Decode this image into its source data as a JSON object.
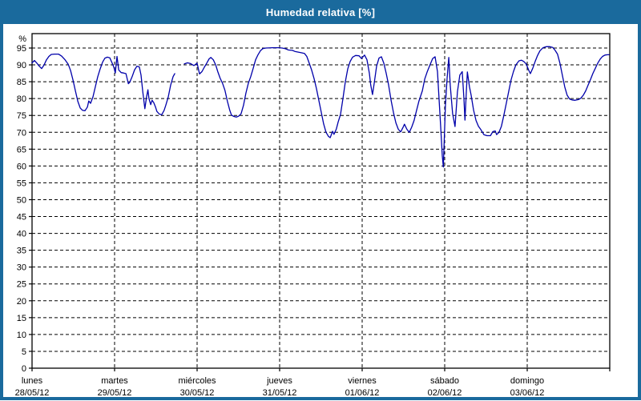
{
  "window": {
    "title": "Humedad relativa [%]"
  },
  "colors": {
    "frame": "#1a6a9d",
    "plot_background": "#ffffff",
    "line": "#0000aa",
    "grid": "#000000",
    "axis": "#000000",
    "text": "#000000",
    "title_text": "#ffffff"
  },
  "chart_data": {
    "type": "line",
    "title": "Humedad relativa [%]",
    "ylabel": "",
    "xlabel": "",
    "y_unit_label": "%",
    "ylim": [
      0,
      95
    ],
    "y_ticks": [
      0,
      5,
      10,
      15,
      20,
      25,
      30,
      35,
      40,
      45,
      50,
      55,
      60,
      65,
      70,
      75,
      80,
      85,
      90,
      95
    ],
    "grid": "dashed",
    "legend_position": "none",
    "hours_per_day": 24,
    "x_days": [
      {
        "name": "lunes",
        "date": "28/05/12"
      },
      {
        "name": "martes",
        "date": "29/05/12"
      },
      {
        "name": "miércoles",
        "date": "30/05/12"
      },
      {
        "name": "jueves",
        "date": "31/05/12"
      },
      {
        "name": "viernes",
        "date": "01/06/12"
      },
      {
        "name": "sábado",
        "date": "02/06/12"
      },
      {
        "name": "domingo",
        "date": "03/06/12"
      }
    ],
    "series": [
      {
        "name": "Humedad relativa",
        "points": [
          [
            0,
            90.6
          ],
          [
            0.7,
            91.3
          ],
          [
            1.4,
            90.5
          ],
          [
            2.1,
            89.6
          ],
          [
            2.8,
            88.9
          ],
          [
            3.5,
            90
          ],
          [
            4.2,
            91.5
          ],
          [
            4.9,
            92.5
          ],
          [
            5.6,
            93.1
          ],
          [
            6.5,
            93.2
          ],
          [
            7.7,
            93.2
          ],
          [
            8.6,
            92.6
          ],
          [
            9.6,
            91.5
          ],
          [
            10.5,
            90.2
          ],
          [
            11.2,
            88.3
          ],
          [
            11.9,
            85.5
          ],
          [
            12.6,
            82.3
          ],
          [
            13.3,
            79.2
          ],
          [
            14,
            77.2
          ],
          [
            14.7,
            76.5
          ],
          [
            15.4,
            76.4
          ],
          [
            16.1,
            77.5
          ],
          [
            16.5,
            79.3
          ],
          [
            17,
            78.6
          ],
          [
            17.7,
            80.5
          ],
          [
            18.4,
            83.5
          ],
          [
            19.1,
            86.5
          ],
          [
            19.8,
            88.8
          ],
          [
            20.5,
            90.8
          ],
          [
            21.2,
            92
          ],
          [
            21.9,
            92.3
          ],
          [
            22.6,
            92.1
          ],
          [
            23.3,
            90.5
          ],
          [
            23.8,
            89.3
          ],
          [
            24.2,
            87.6
          ],
          [
            24.7,
            92.5
          ],
          [
            25.2,
            88.5
          ],
          [
            25.9,
            87.7
          ],
          [
            26.6,
            87.6
          ],
          [
            27.3,
            87.4
          ],
          [
            28,
            84.4
          ],
          [
            28.4,
            84.8
          ],
          [
            29.1,
            86.5
          ],
          [
            29.8,
            88.5
          ],
          [
            30.5,
            89.6
          ],
          [
            31.2,
            89.4
          ],
          [
            31.7,
            87
          ],
          [
            32.2,
            82
          ],
          [
            32.8,
            77
          ],
          [
            33.3,
            80.5
          ],
          [
            33.7,
            82.6
          ],
          [
            34,
            80
          ],
          [
            34.5,
            78.2
          ],
          [
            34.9,
            79.5
          ],
          [
            35.4,
            78.8
          ],
          [
            35.9,
            77.5
          ],
          [
            36.3,
            76.2
          ],
          [
            37,
            75.4
          ],
          [
            37.7,
            75.2
          ],
          [
            38.4,
            76.5
          ],
          [
            38.9,
            78
          ],
          [
            39.6,
            80.5
          ],
          [
            40.3,
            84
          ],
          [
            41,
            86.5
          ],
          [
            41.5,
            87.4
          ],
          [
            42.9,
            null
          ],
          [
            44.3,
            90.3
          ],
          [
            45.2,
            90.6
          ],
          [
            46.1,
            90.4
          ],
          [
            47.1,
            89.8
          ],
          [
            48,
            90.5
          ],
          [
            48.7,
            87.3
          ],
          [
            49.4,
            88
          ],
          [
            50.1,
            89.3
          ],
          [
            50.8,
            90.5
          ],
          [
            51.5,
            91.8
          ],
          [
            52,
            92.2
          ],
          [
            52.7,
            91.5
          ],
          [
            53.4,
            90
          ],
          [
            54,
            88
          ],
          [
            54.7,
            86
          ],
          [
            55.4,
            84.5
          ],
          [
            56.1,
            82.4
          ],
          [
            56.8,
            79.2
          ],
          [
            57.5,
            76.5
          ],
          [
            58,
            75.1
          ],
          [
            58.7,
            74.7
          ],
          [
            59.4,
            74.5
          ],
          [
            60.1,
            74.8
          ],
          [
            60.8,
            75.5
          ],
          [
            61.5,
            78
          ],
          [
            62.2,
            81.6
          ],
          [
            62.9,
            84.5
          ],
          [
            63.6,
            86.5
          ],
          [
            64.3,
            89
          ],
          [
            65,
            91.5
          ],
          [
            65.7,
            93
          ],
          [
            66.4,
            94.2
          ],
          [
            67.1,
            94.8
          ],
          [
            68,
            95
          ],
          [
            69.9,
            95.1
          ],
          [
            71.8,
            95.1
          ],
          [
            72.7,
            95
          ],
          [
            73.6,
            94.8
          ],
          [
            74.6,
            94.4
          ],
          [
            75.7,
            94.3
          ],
          [
            76.4,
            94
          ],
          [
            77.4,
            93.8
          ],
          [
            78.3,
            93.6
          ],
          [
            79.2,
            93.4
          ],
          [
            79.9,
            92.5
          ],
          [
            80.6,
            90.5
          ],
          [
            81.3,
            88.5
          ],
          [
            82,
            86
          ],
          [
            82.7,
            83
          ],
          [
            83.4,
            79.5
          ],
          [
            84.1,
            76
          ],
          [
            84.8,
            72.5
          ],
          [
            85.5,
            70
          ],
          [
            86.2,
            68.8
          ],
          [
            86.7,
            68.4
          ],
          [
            87.4,
            70.3
          ],
          [
            87.8,
            69.4
          ],
          [
            88.5,
            71
          ],
          [
            89,
            73
          ],
          [
            89.7,
            75.3
          ],
          [
            90.4,
            80
          ],
          [
            91.1,
            85
          ],
          [
            91.8,
            88.8
          ],
          [
            92.5,
            91
          ],
          [
            93.2,
            92.3
          ],
          [
            94.1,
            92.8
          ],
          [
            95.1,
            92.7
          ],
          [
            95.8,
            91.9
          ],
          [
            96.7,
            92.9
          ],
          [
            97.4,
            91.5
          ],
          [
            98.1,
            87.5
          ],
          [
            98.5,
            84
          ],
          [
            99,
            81.2
          ],
          [
            99.5,
            84.5
          ],
          [
            100.2,
            89.6
          ],
          [
            100.9,
            92
          ],
          [
            101.6,
            92.4
          ],
          [
            102.3,
            90.5
          ],
          [
            103,
            87.5
          ],
          [
            103.7,
            84
          ],
          [
            104.4,
            79.5
          ],
          [
            105.1,
            75.8
          ],
          [
            105.8,
            72.8
          ],
          [
            106.5,
            70.9
          ],
          [
            107.2,
            70.1
          ],
          [
            107.9,
            71.5
          ],
          [
            108.3,
            72.4
          ],
          [
            109,
            70.9
          ],
          [
            109.7,
            70
          ],
          [
            110.4,
            71.5
          ],
          [
            111.1,
            73.5
          ],
          [
            111.8,
            76.4
          ],
          [
            112.5,
            79.2
          ],
          [
            113.5,
            82.3
          ],
          [
            114.2,
            85.8
          ],
          [
            114.9,
            87.9
          ],
          [
            115.8,
            90.2
          ],
          [
            116.5,
            91.9
          ],
          [
            117.2,
            92.4
          ],
          [
            117.9,
            88
          ],
          [
            118.3,
            81
          ],
          [
            118.8,
            72
          ],
          [
            119.3,
            63
          ],
          [
            119.6,
            59.7
          ],
          [
            120.2,
            78
          ],
          [
            120.7,
            86
          ],
          [
            121.2,
            92.2
          ],
          [
            121.6,
            84
          ],
          [
            122.3,
            75.5
          ],
          [
            123,
            71.7
          ],
          [
            123.7,
            82
          ],
          [
            124.4,
            87
          ],
          [
            125.1,
            88
          ],
          [
            125.6,
            80
          ],
          [
            125.9,
            73.6
          ],
          [
            126.3,
            82
          ],
          [
            126.6,
            87.9
          ],
          [
            127.2,
            83.5
          ],
          [
            127.7,
            81
          ],
          [
            128.4,
            76.5
          ],
          [
            129.1,
            73.5
          ],
          [
            129.8,
            71.8
          ],
          [
            130.5,
            70.8
          ],
          [
            131.4,
            69.3
          ],
          [
            132.3,
            69
          ],
          [
            133.3,
            69
          ],
          [
            134,
            70.2
          ],
          [
            134.7,
            70.4
          ],
          [
            135.1,
            69.3
          ],
          [
            135.8,
            70
          ],
          [
            136.5,
            71.8
          ],
          [
            137.2,
            75
          ],
          [
            137.9,
            78.5
          ],
          [
            138.6,
            82
          ],
          [
            139.3,
            85.5
          ],
          [
            140,
            88
          ],
          [
            140.7,
            90
          ],
          [
            141.6,
            91.2
          ],
          [
            142.3,
            91.4
          ],
          [
            143,
            91
          ],
          [
            143.7,
            90.3
          ],
          [
            144.4,
            88.5
          ],
          [
            144.9,
            87.4
          ],
          [
            145.6,
            89
          ],
          [
            146.3,
            91
          ],
          [
            147,
            92.8
          ],
          [
            147.7,
            94.2
          ],
          [
            148.6,
            95.1
          ],
          [
            149.6,
            95.4
          ],
          [
            150.5,
            95.4
          ],
          [
            151.4,
            95.2
          ],
          [
            152.1,
            94.3
          ],
          [
            152.8,
            93.2
          ],
          [
            153.5,
            90.5
          ],
          [
            154.2,
            87
          ],
          [
            154.9,
            83.5
          ],
          [
            155.6,
            81
          ],
          [
            156.3,
            79.9
          ],
          [
            157,
            79.6
          ],
          [
            157.9,
            79.5
          ],
          [
            158.9,
            79.7
          ],
          [
            159.6,
            80.1
          ],
          [
            160.3,
            81
          ],
          [
            161,
            82.3
          ],
          [
            161.7,
            84
          ],
          [
            162.4,
            85.7
          ],
          [
            163.1,
            87.5
          ],
          [
            163.8,
            89
          ],
          [
            164.5,
            90.5
          ],
          [
            165.2,
            91.7
          ],
          [
            165.9,
            92.5
          ],
          [
            166.6,
            92.9
          ],
          [
            167.3,
            93
          ],
          [
            167.8,
            93
          ]
        ]
      }
    ]
  }
}
